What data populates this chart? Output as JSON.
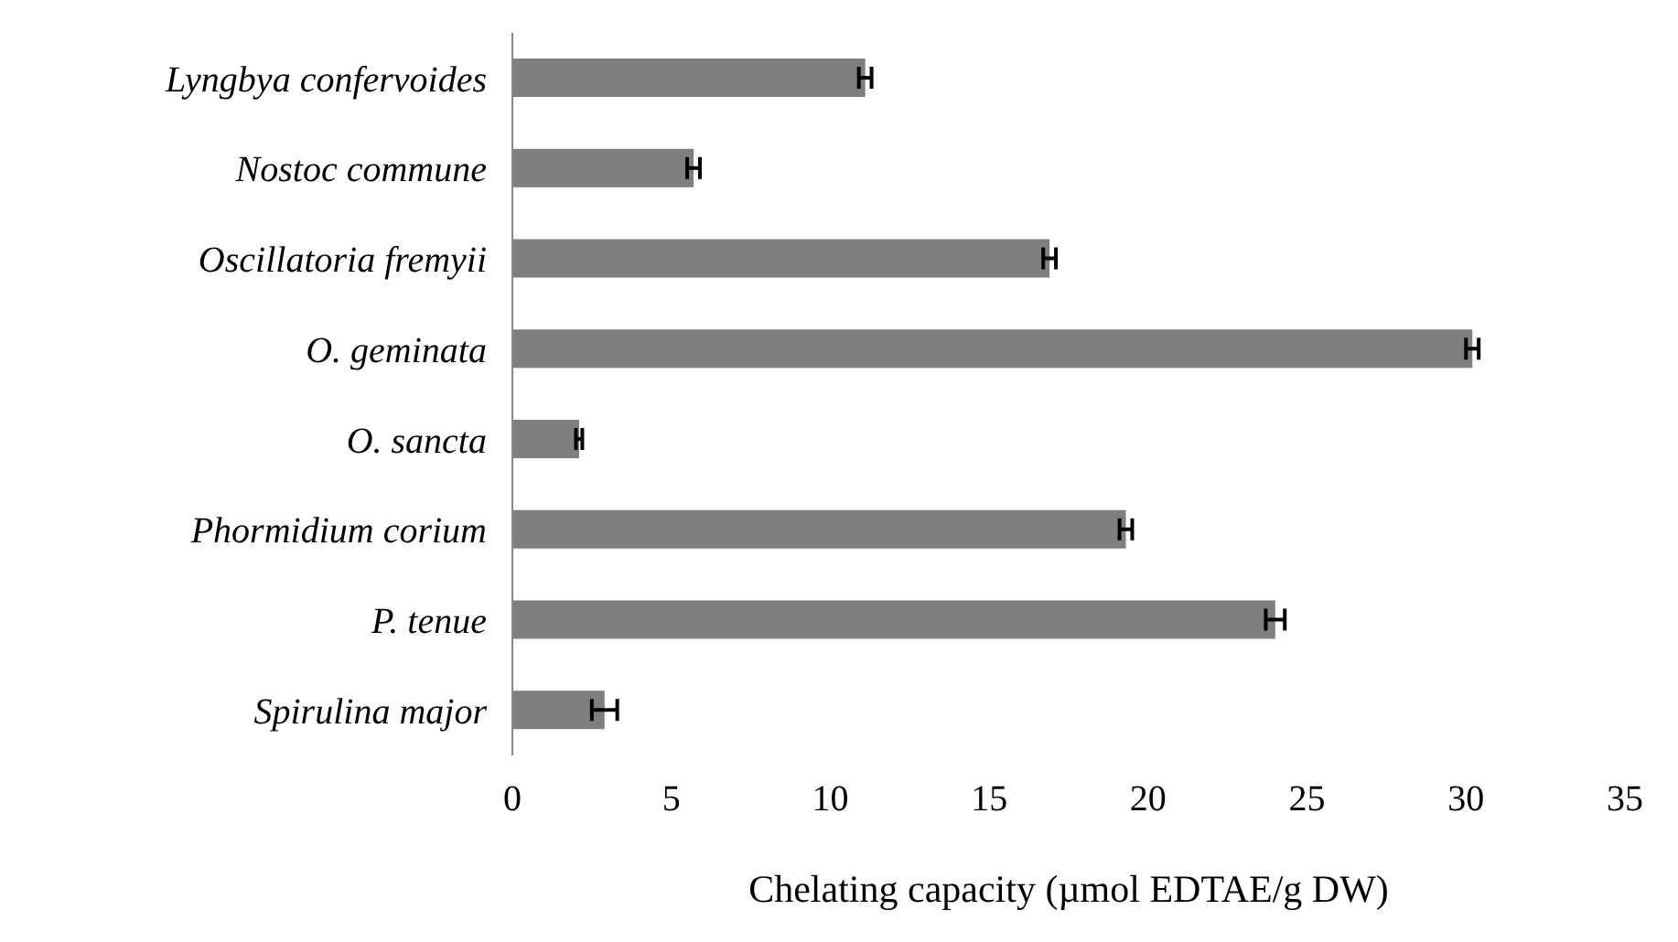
{
  "chart_data": {
    "type": "bar",
    "orientation": "horizontal",
    "xlabel": "Chelating capacity (µmol EDTAE/g DW)",
    "categories": [
      "Lyngbya confervoides",
      "Nostoc commune",
      "Oscillatoria fremyii",
      "O. geminata",
      "O. sancta",
      "Phormidium corium",
      "P. tenue",
      "Spirulina major"
    ],
    "values": [
      11.1,
      5.7,
      16.9,
      30.2,
      2.1,
      19.3,
      24.0,
      2.9
    ],
    "errors": [
      0.2,
      0.2,
      0.2,
      0.2,
      0.1,
      0.2,
      0.3,
      0.4
    ],
    "color": "#7f7f7f",
    "xlim": [
      0,
      35
    ],
    "xticks": [
      0,
      5,
      10,
      15,
      20,
      25,
      30,
      35
    ],
    "grid": false
  }
}
